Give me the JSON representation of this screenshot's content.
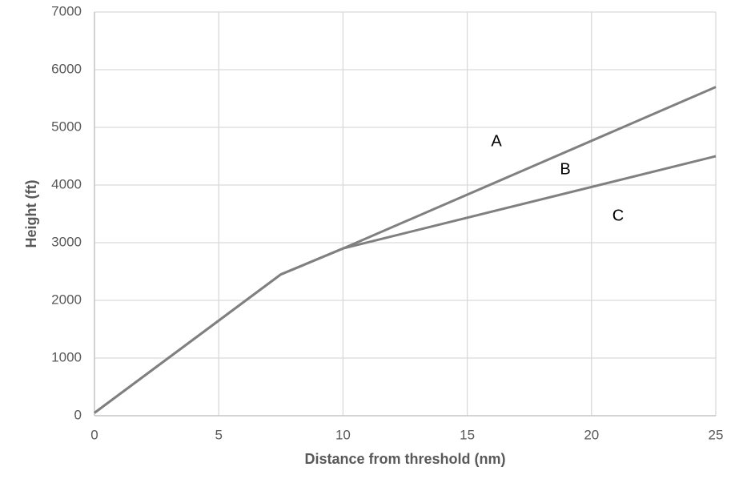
{
  "chart_data": {
    "type": "line",
    "x_label": "Distance from threshold (nm)",
    "y_label": "Height (ft)",
    "x": [
      0,
      7.5,
      10,
      25
    ],
    "series": [
      {
        "color": "#808080",
        "values": [
          50,
          2450,
          2900,
          5700
        ]
      },
      {
        "color": "#808080",
        "values": [
          50,
          2450,
          2900,
          4500
        ]
      }
    ],
    "annotations": [
      "A",
      "B",
      "C"
    ],
    "xlim": [
      0,
      25
    ],
    "xticks": [
      0,
      5,
      10,
      15,
      20,
      25
    ],
    "ylim": [
      0,
      7000
    ],
    "yticks": [
      0,
      1000,
      2000,
      3000,
      4000,
      5000,
      6000,
      7000
    ],
    "grid": true
  }
}
